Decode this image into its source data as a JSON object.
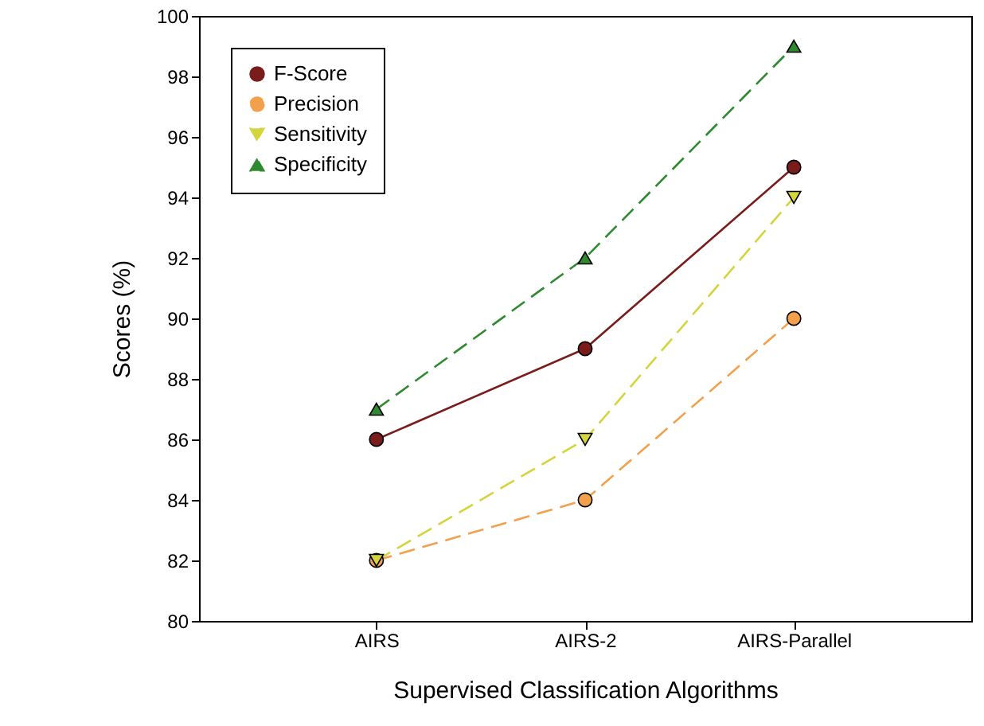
{
  "chart_data": {
    "type": "line",
    "xlabel": "Supervised Classification Algorithms",
    "ylabel": "Scores (%)",
    "categories": [
      "AIRS",
      "AIRS-2",
      "AIRS-Parallel"
    ],
    "ylim": [
      80,
      100
    ],
    "yticks": [
      80,
      82,
      84,
      86,
      88,
      90,
      92,
      94,
      96,
      98,
      100
    ],
    "grid": false,
    "legend": "top left",
    "series": [
      {
        "name": "F-Score",
        "color": "#7a1c1c",
        "marker": "circle",
        "line_style": "solid",
        "values": [
          86,
          89,
          95
        ]
      },
      {
        "name": "Precision",
        "color": "#f2a04c",
        "marker": "circle",
        "line_style": "dashed",
        "values": [
          82,
          84,
          90
        ]
      },
      {
        "name": "Sensitivity",
        "color": "#d4d43c",
        "marker": "triangle-down",
        "line_style": "dashed",
        "values": [
          82,
          86,
          94
        ]
      },
      {
        "name": "Specificity",
        "color": "#2e8a2e",
        "marker": "triangle",
        "line_style": "dashed",
        "values": [
          87,
          92,
          99
        ]
      }
    ]
  }
}
